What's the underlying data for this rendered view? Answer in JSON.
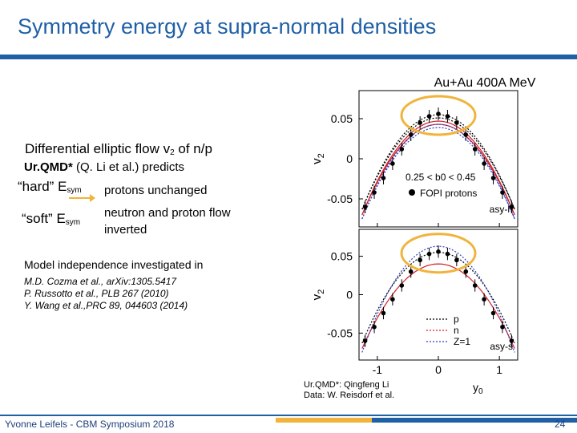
{
  "slide": {
    "title": "Symmetry energy at supra-normal densities",
    "heading": "Differential elliptic flow v",
    "heading_sub": "2",
    "heading_suffix": " of n/p",
    "predicts_bold": "Ur.QMD*",
    "predicts_rest": " (Q. Li et al.) predicts",
    "hard_label": "“hard” E",
    "hard_sub": "sym",
    "hard_text": "protons unchanged",
    "soft_label": "“soft” E",
    "soft_sub": "sym",
    "soft_text_1": "neutron and proton flow",
    "soft_text_2": "inverted",
    "model_text": "Model independence investigated in",
    "ref_1": "M.D. Cozma et al., arXiv:1305.5417",
    "ref_2": "P. Russotto et al., PLB 267 (2010)",
    "ref_3": "Y. Wang et al.,PRC 89, 044603 (2014)",
    "credit_1": "Ur.QMD*: Qingfeng Li",
    "credit_2": "Data: W. Reisdorf et al.",
    "footer": "Yvonne Leifels - CBM Symposium 2018",
    "page": "24"
  },
  "colors": {
    "title": "#1f5fa6",
    "accent": "#f0b43c",
    "arrow": "#f0b43c"
  },
  "chart_data": {
    "type": "line",
    "title": "Au+Au 400A MeV",
    "xlabel": "y0",
    "ylabel": "v2",
    "panels": [
      {
        "label": "asy-h",
        "xlim": [
          -1.3,
          1.3
        ],
        "ylim": [
          -0.085,
          0.085
        ],
        "yticks": [
          "0.05",
          "0",
          "-0.05"
        ],
        "legend": [
          "0.25 < b0 < 0.45",
          "FOPI protons"
        ],
        "series": [
          {
            "name": "p",
            "style": "dotted-black"
          },
          {
            "name": "n",
            "style": "solid-red"
          },
          {
            "name": "Z=1",
            "style": "dotted-blue"
          }
        ],
        "data_x": [
          -1.2,
          -1.05,
          -0.9,
          -0.75,
          -0.6,
          -0.45,
          -0.3,
          -0.15,
          0.0,
          0.15,
          0.3,
          0.45,
          0.6,
          0.75,
          0.9,
          1.05,
          1.2
        ],
        "data_y": [
          -0.06,
          -0.042,
          -0.024,
          -0.006,
          0.012,
          0.03,
          0.045,
          0.053,
          0.056,
          0.053,
          0.045,
          0.03,
          0.012,
          -0.006,
          -0.024,
          -0.042,
          -0.06
        ]
      },
      {
        "label": "asy-s",
        "xlim": [
          -1.3,
          1.3
        ],
        "ylim": [
          -0.085,
          0.085
        ],
        "yticks": [
          "0.05",
          "0",
          "-0.05"
        ],
        "xticks": [
          "-1",
          "0",
          "1"
        ],
        "legend": [
          "p",
          "n",
          "Z=1"
        ],
        "series": [
          {
            "name": "p",
            "style": "dotted-black"
          },
          {
            "name": "n",
            "style": "solid-red"
          },
          {
            "name": "Z=1",
            "style": "dotted-blue"
          }
        ],
        "data_x": [
          -1.2,
          -1.05,
          -0.9,
          -0.75,
          -0.6,
          -0.45,
          -0.3,
          -0.15,
          0.0,
          0.15,
          0.3,
          0.45,
          0.6,
          0.75,
          0.9,
          1.05,
          1.2
        ],
        "data_y": [
          -0.06,
          -0.042,
          -0.024,
          -0.006,
          0.012,
          0.03,
          0.045,
          0.053,
          0.056,
          0.053,
          0.045,
          0.03,
          0.012,
          -0.006,
          -0.024,
          -0.042,
          -0.06
        ]
      }
    ]
  }
}
